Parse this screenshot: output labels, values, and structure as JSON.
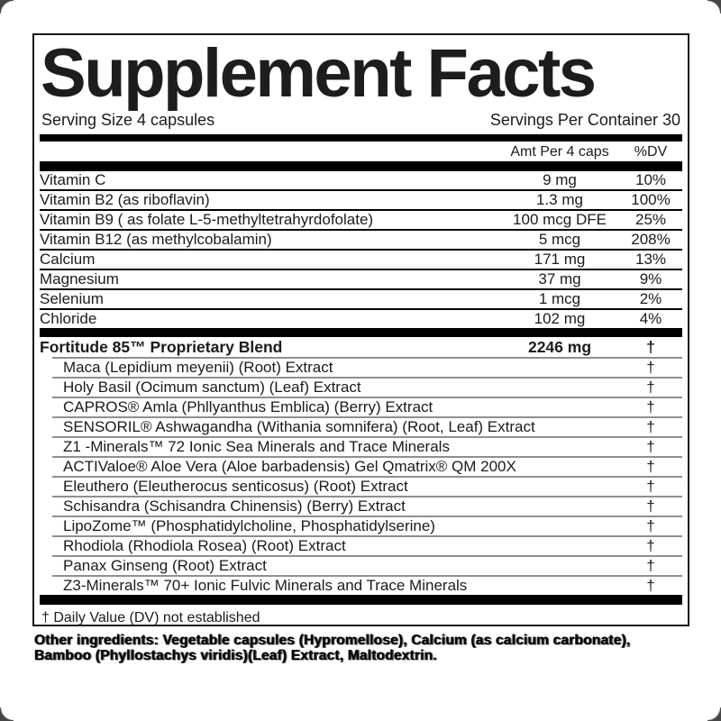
{
  "label": {
    "title": "Supplement Facts",
    "serving_size": "Serving Size 4 capsules",
    "servings_per_container": "Servings Per Container 30",
    "columns": {
      "amount": "Amt Per 4 caps",
      "dv": "%DV"
    },
    "nutrients": [
      {
        "name": "Vitamin C",
        "amount": "9 mg",
        "dv": "10%"
      },
      {
        "name": "Vitamin B2 (as riboflavin)",
        "amount": "1.3 mg",
        "dv": "100%"
      },
      {
        "name": "Vitamin B9 ( as folate L-5-methyltetrahyrdofolate)",
        "amount": "100 mcg DFE",
        "dv": "25%"
      },
      {
        "name": "Vitamin B12 (as methylcobalamin)",
        "amount": "5 mcg",
        "dv": "208%"
      },
      {
        "name": "Calcium",
        "amount": "171 mg",
        "dv": "13%"
      },
      {
        "name": "Magnesium",
        "amount": "37 mg",
        "dv": "9%"
      },
      {
        "name": "Selenium",
        "amount": "1 mcg",
        "dv": "2%"
      },
      {
        "name": "Chloride",
        "amount": "102 mg",
        "dv": "4%"
      }
    ],
    "blend": {
      "name": "Fortitude 85™ Proprietary Blend",
      "amount": "2246 mg",
      "dv": "†",
      "ingredients": [
        {
          "name": "Maca (Lepidium meyenii) (Root) Extract",
          "dv": "†"
        },
        {
          "name": "Holy Basil (Ocimum sanctum) (Leaf) Extract",
          "dv": "†"
        },
        {
          "name": "CAPROS® Amla (Phllyanthus Emblica) (Berry) Extract",
          "dv": "†"
        },
        {
          "name": "SENSORIL® Ashwagandha (Withania somnifera) (Root, Leaf) Extract",
          "dv": "†"
        },
        {
          "name": "Z1 -Minerals™ 72 Ionic Sea Minerals and Trace Minerals",
          "dv": "†"
        },
        {
          "name": "ACTIValoe® Aloe Vera (Aloe barbadensis) Gel Qmatrix® QM 200X",
          "dv": "†"
        },
        {
          "name": "Eleuthero (Eleutherocus senticosus) (Root) Extract",
          "dv": "†"
        },
        {
          "name": "Schisandra (Schisandra Chinensis) (Berry) Extract",
          "dv": "†"
        },
        {
          "name": "LipoZome™ (Phosphatidylcholine, Phosphatidylserine)",
          "dv": "†"
        },
        {
          "name": "Rhodiola (Rhodiola Rosea) (Root) Extract",
          "dv": "†"
        },
        {
          "name": "Panax Ginseng (Root) Extract",
          "dv": "†"
        },
        {
          "name": "Z3-Minerals™ 70+ Ionic Fulvic Minerals and Trace Minerals",
          "dv": "†"
        }
      ]
    },
    "footnote": "† Daily Value (DV) not established",
    "other_ingredients": "Other ingredients: Vegetable capsules (Hypromellose), Calcium (as calcium carbonate), Bamboo (Phyllostachys viridis)(Leaf) Extract, Maltodextrin."
  },
  "colors": {
    "text": "#1b1b1b",
    "bar": "#000000",
    "nutrient_divider": "#000000",
    "blend_divider": "#8f8f8f",
    "background": "#ffffff"
  }
}
